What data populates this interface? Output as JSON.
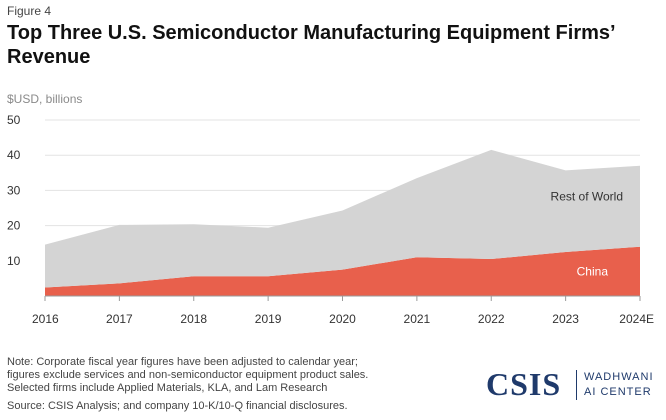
{
  "figure_label": "Figure 4",
  "title": "Top Three U.S. Semiconductor Manufacturing Equipment Firms’ Revenue",
  "unit_label": "$USD, billions",
  "chart_data": {
    "type": "area",
    "stacked": true,
    "categories": [
      "2016",
      "2017",
      "2018",
      "2019",
      "2020",
      "2021",
      "2022",
      "2023",
      "2024E"
    ],
    "ylim": [
      0,
      50
    ],
    "yticks": [
      10,
      20,
      30,
      40,
      50
    ],
    "grid": true,
    "series": [
      {
        "name": "China",
        "values": [
          2.4,
          3.6,
          5.6,
          5.6,
          7.5,
          11.0,
          10.5,
          12.5,
          14.0
        ],
        "color": "#e8604c",
        "label_color": "#ffffff"
      },
      {
        "name": "Rest of World",
        "values": [
          12.2,
          16.6,
          14.8,
          13.8,
          16.8,
          22.5,
          31.0,
          23.2,
          23.0
        ],
        "color": "#d4d4d4",
        "label_color": "#333333"
      }
    ],
    "totals": [
      14.6,
      20.2,
      20.4,
      19.4,
      24.3,
      33.5,
      41.5,
      35.7,
      37.0
    ]
  },
  "footer": {
    "note_lines": [
      "Note: Corporate fiscal year figures have been adjusted to calendar year;",
      "figures exclude services and non-semiconductor equipment product sales.",
      "Selected firms include Applied Materials, KLA, and Lam Research"
    ],
    "source": "Source: CSIS Analysis; and company 10-K/10-Q financial disclosures."
  },
  "logo": {
    "csis": "CSIS",
    "line1": "WADHWANI",
    "line2": "AI CENTER"
  }
}
